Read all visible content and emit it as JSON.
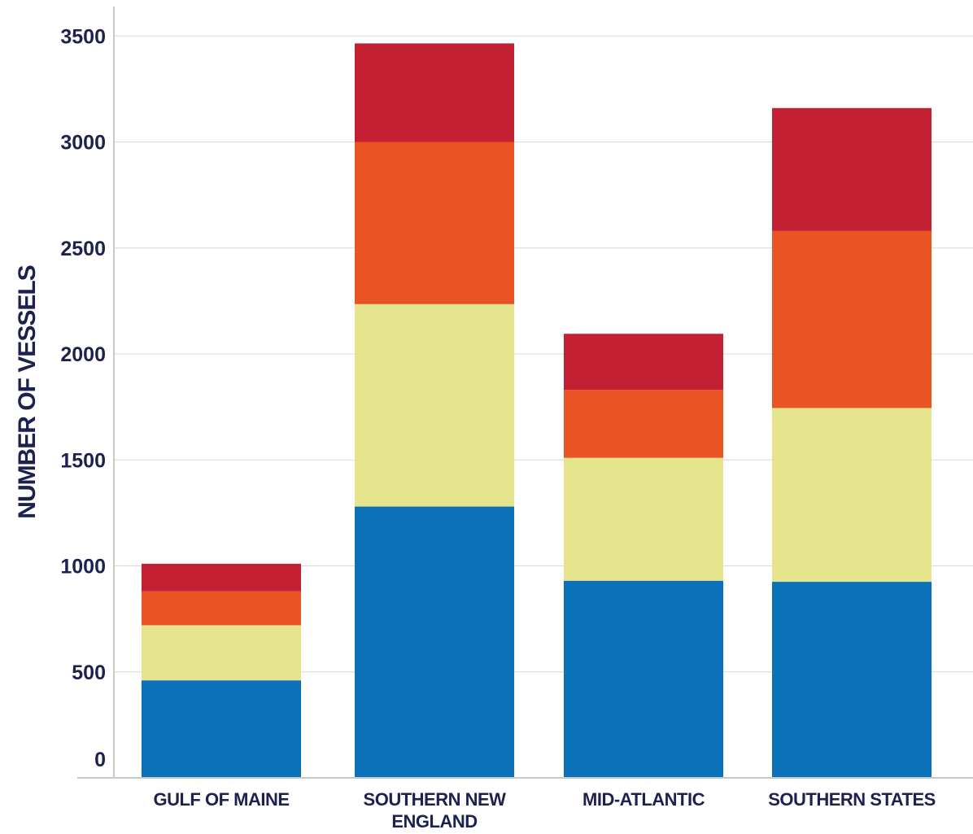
{
  "chart_data": {
    "type": "bar",
    "stacked": true,
    "title": "",
    "xlabel": "",
    "ylabel": "NUMBER OF VESSELS",
    "ylim": [
      0,
      3600
    ],
    "yticks": [
      0,
      500,
      1000,
      1500,
      2000,
      2500,
      3000,
      3500
    ],
    "grid": true,
    "legend": "none",
    "categories": [
      [
        "GULF OF MAINE"
      ],
      [
        "SOUTHERN NEW",
        "ENGLAND"
      ],
      [
        "MID-ATLANTIC"
      ],
      [
        "SOUTHERN STATES"
      ]
    ],
    "series": [
      {
        "color": "#0b72b9",
        "values": [
          460,
          1280,
          930,
          925
        ]
      },
      {
        "color": "#e4e48c",
        "values": [
          260,
          955,
          580,
          820
        ]
      },
      {
        "color": "#e85423",
        "values": [
          160,
          765,
          320,
          835
        ]
      },
      {
        "color": "#c32033",
        "values": [
          130,
          465,
          265,
          580
        ]
      }
    ],
    "colors": {
      "text": "#1d2150",
      "grid": "#d8d8d8",
      "axis": "#c8c8c8"
    }
  }
}
